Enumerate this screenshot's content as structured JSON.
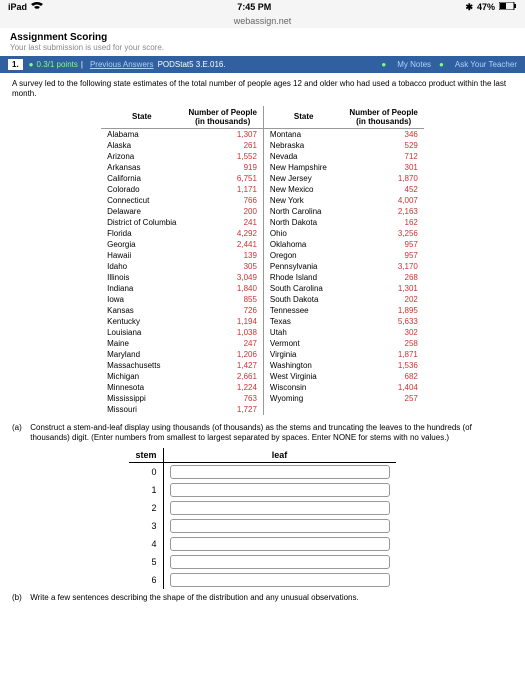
{
  "status": {
    "device": "iPad",
    "time": "7:45 PM",
    "bt": "✱",
    "battery": "47%"
  },
  "url": "webassign.net",
  "scoring": {
    "title": "Assignment Scoring",
    "sub": "Your last submission is used for your score."
  },
  "qbar": {
    "num": "1.",
    "points": "0.3/1 points",
    "prev": "Previous Answers",
    "ref": "PODStat5 3.E.016.",
    "notes": "My Notes",
    "ask": "Ask Your Teacher"
  },
  "intro": "A survey led to the following state estimates of the total number of people ages 12 and older who had used a tobacco product within the last month.",
  "headers": {
    "state": "State",
    "num": "Number of People",
    "unit": "(in thousands)"
  },
  "rowsL": [
    {
      "s": "Alabama",
      "v": "1,307"
    },
    {
      "s": "Alaska",
      "v": "261"
    },
    {
      "s": "Arizona",
      "v": "1,552"
    },
    {
      "s": "Arkansas",
      "v": "919"
    },
    {
      "s": "California",
      "v": "6,751"
    },
    {
      "s": "Colorado",
      "v": "1,171"
    },
    {
      "s": "Connecticut",
      "v": "766"
    },
    {
      "s": "Delaware",
      "v": "200"
    },
    {
      "s": "District of Columbia",
      "v": "241"
    },
    {
      "s": "Florida",
      "v": "4,292"
    },
    {
      "s": "Georgia",
      "v": "2,441"
    },
    {
      "s": "Hawaii",
      "v": "139"
    },
    {
      "s": "Idaho",
      "v": "305"
    },
    {
      "s": "Illinois",
      "v": "3,049"
    },
    {
      "s": "Indiana",
      "v": "1,840"
    },
    {
      "s": "Iowa",
      "v": "855"
    },
    {
      "s": "Kansas",
      "v": "726"
    },
    {
      "s": "Kentucky",
      "v": "1,194"
    },
    {
      "s": "Louisiana",
      "v": "1,038"
    },
    {
      "s": "Maine",
      "v": "247"
    },
    {
      "s": "Maryland",
      "v": "1,206"
    },
    {
      "s": "Massachusetts",
      "v": "1,427"
    },
    {
      "s": "Michigan",
      "v": "2,661"
    },
    {
      "s": "Minnesota",
      "v": "1,224"
    },
    {
      "s": "Mississippi",
      "v": "763"
    },
    {
      "s": "Missouri",
      "v": "1,727"
    }
  ],
  "rowsR": [
    {
      "s": "Montana",
      "v": "346"
    },
    {
      "s": "Nebraska",
      "v": "529"
    },
    {
      "s": "Nevada",
      "v": "712"
    },
    {
      "s": "New Hampshire",
      "v": "301"
    },
    {
      "s": "New Jersey",
      "v": "1,870"
    },
    {
      "s": "New Mexico",
      "v": "452"
    },
    {
      "s": "New York",
      "v": "4,007"
    },
    {
      "s": "North Carolina",
      "v": "2,163"
    },
    {
      "s": "North Dakota",
      "v": "162"
    },
    {
      "s": "Ohio",
      "v": "3,256"
    },
    {
      "s": "Oklahoma",
      "v": "957"
    },
    {
      "s": "Oregon",
      "v": "957"
    },
    {
      "s": "Pennsylvania",
      "v": "3,170"
    },
    {
      "s": "Rhode Island",
      "v": "268"
    },
    {
      "s": "South Carolina",
      "v": "1,301"
    },
    {
      "s": "South Dakota",
      "v": "202"
    },
    {
      "s": "Tennessee",
      "v": "1,895"
    },
    {
      "s": "Texas",
      "v": "5,633"
    },
    {
      "s": "Utah",
      "v": "302"
    },
    {
      "s": "Vermont",
      "v": "258"
    },
    {
      "s": "Virginia",
      "v": "1,871"
    },
    {
      "s": "Washington",
      "v": "1,536"
    },
    {
      "s": "West Virginia",
      "v": "682"
    },
    {
      "s": "Wisconsin",
      "v": "1,404"
    },
    {
      "s": "Wyoming",
      "v": "257"
    },
    {
      "s": "",
      "v": ""
    }
  ],
  "partA": {
    "label": "(a)",
    "text": "Construct a stem-and-leaf display using thousands (of thousands) as the stems and truncating the leaves to the hundreds (of thousands) digit. (Enter numbers from smallest to largest separated by spaces. Enter NONE for stems with no values.)"
  },
  "stemleaf": {
    "stemH": "stem",
    "leafH": "leaf",
    "stems": [
      "0",
      "1",
      "2",
      "3",
      "4",
      "5",
      "6"
    ]
  },
  "partB": {
    "label": "(b)",
    "text": "Write a few sentences describing the shape of the distribution and any unusual observations."
  }
}
